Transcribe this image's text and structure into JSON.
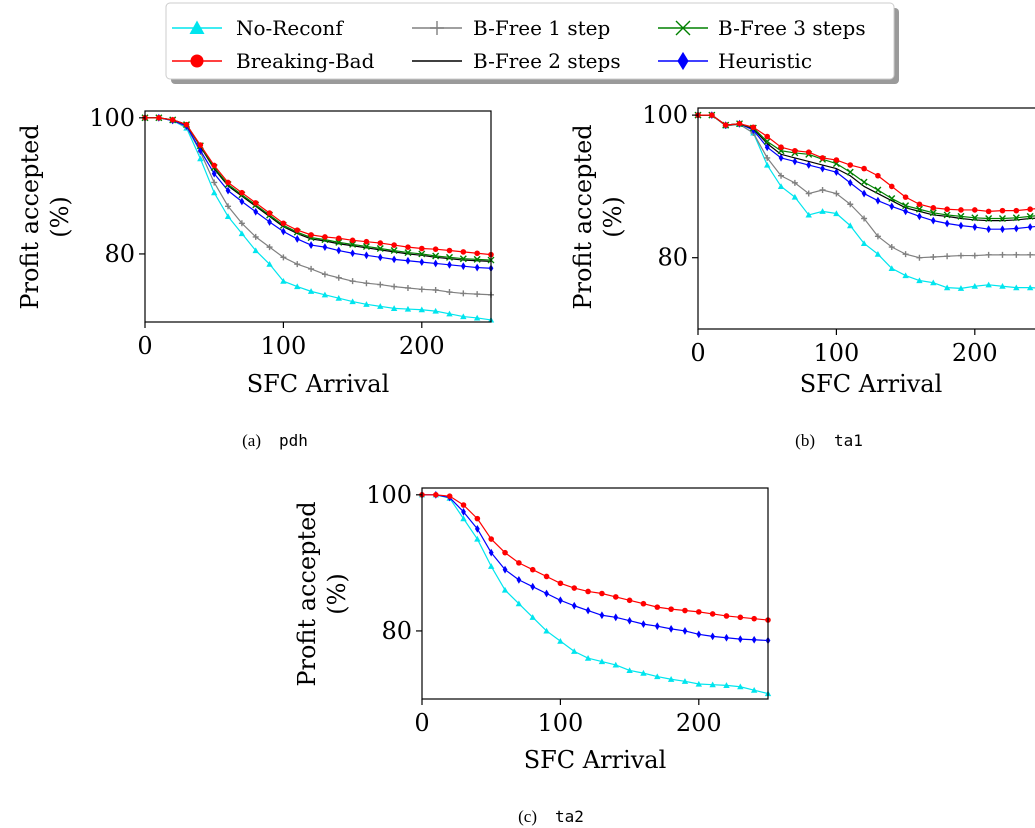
{
  "legend": {
    "entries": [
      {
        "label": "No-Reconf",
        "color": "#00e5ee",
        "marker": "triangle"
      },
      {
        "label": "Breaking-Bad",
        "color": "#ff0000",
        "marker": "circle"
      },
      {
        "label": "B-Free 1 step",
        "color": "#808080",
        "marker": "plus"
      },
      {
        "label": "B-Free 2 steps",
        "color": "#000000",
        "marker": "none"
      },
      {
        "label": "B-Free 3 steps",
        "color": "#008000",
        "marker": "x"
      },
      {
        "label": "Heuristic",
        "color": "#0000ff",
        "marker": "diamond"
      }
    ]
  },
  "chart_data": [
    {
      "type": "line",
      "caption": "(a)",
      "caption_code": "pdh",
      "xlabel": "SFC Arrival",
      "ylabel": "Profit accepted (%)",
      "xlim": [
        0,
        250
      ],
      "ylim": [
        70,
        101
      ],
      "xticks": [
        0,
        100,
        200
      ],
      "yticks": [
        80,
        100
      ],
      "grid": false,
      "x": [
        0,
        10,
        20,
        30,
        40,
        50,
        60,
        70,
        80,
        90,
        100,
        110,
        120,
        130,
        140,
        150,
        160,
        170,
        180,
        190,
        200,
        210,
        220,
        230,
        240,
        250
      ],
      "series": [
        {
          "name": "No-Reconf",
          "values": [
            100,
            100,
            99.6,
            98.5,
            94,
            89,
            85.5,
            83,
            80.5,
            78.5,
            76,
            75.2,
            74.5,
            74,
            73.5,
            73,
            72.6,
            72.3,
            72,
            71.9,
            71.8,
            71.6,
            71.2,
            70.8,
            70.6,
            70.3
          ]
        },
        {
          "name": "Breaking-Bad",
          "values": [
            100,
            100,
            99.7,
            99,
            96,
            93,
            90.5,
            89,
            87.5,
            86,
            84.5,
            83.5,
            82.8,
            82.5,
            82.3,
            82,
            81.8,
            81.6,
            81.3,
            81,
            80.8,
            80.7,
            80.5,
            80.3,
            80.1,
            79.9
          ]
        },
        {
          "name": "B-Free 1 step",
          "values": [
            100,
            100,
            99.6,
            98.7,
            95,
            90.5,
            87,
            84.5,
            82.5,
            81,
            79.5,
            78.5,
            77.8,
            77,
            76.5,
            76,
            75.7,
            75.5,
            75.2,
            75,
            74.8,
            74.7,
            74.4,
            74.2,
            74.1,
            74
          ]
        },
        {
          "name": "B-Free 2 steps",
          "values": [
            100,
            100,
            99.7,
            99,
            95.8,
            92.5,
            90,
            88.5,
            87,
            85.5,
            84,
            83,
            82.2,
            81.9,
            81.5,
            81.2,
            80.9,
            80.6,
            80.3,
            80,
            79.8,
            79.5,
            79.3,
            79.1,
            79,
            78.9
          ]
        },
        {
          "name": "B-Free 3 steps",
          "values": [
            100,
            100,
            99.7,
            99,
            95.9,
            92.7,
            90.2,
            88.7,
            87.2,
            85.7,
            84.2,
            83.2,
            82.4,
            82.1,
            81.7,
            81.4,
            81.1,
            80.8,
            80.5,
            80.2,
            80,
            79.7,
            79.5,
            79.3,
            79.2,
            79.1
          ]
        },
        {
          "name": "Heuristic",
          "values": [
            100,
            100,
            99.6,
            98.8,
            95.2,
            91.8,
            89.3,
            87.7,
            86.2,
            84.7,
            83.3,
            82.2,
            81.3,
            81,
            80.5,
            80.1,
            79.8,
            79.5,
            79.2,
            79,
            78.8,
            78.6,
            78.4,
            78.2,
            78,
            77.9
          ]
        }
      ]
    },
    {
      "type": "line",
      "caption": "(b)",
      "caption_code": "ta1",
      "xlabel": "SFC Arrival",
      "ylabel": "Profit accepted (%)",
      "xlim": [
        0,
        250
      ],
      "ylim": [
        70,
        101
      ],
      "xticks": [
        0,
        100,
        200
      ],
      "yticks": [
        80,
        100
      ],
      "grid": false,
      "x": [
        0,
        10,
        20,
        30,
        40,
        50,
        60,
        70,
        80,
        90,
        100,
        110,
        120,
        130,
        140,
        150,
        160,
        170,
        180,
        190,
        200,
        210,
        220,
        230,
        240,
        250
      ],
      "series": [
        {
          "name": "No-Reconf",
          "values": [
            100,
            100,
            98.5,
            98.7,
            97.5,
            93,
            90,
            88.5,
            86,
            86.5,
            86.2,
            84.5,
            82,
            80.5,
            78.5,
            77.5,
            76.8,
            76.5,
            75.8,
            75.7,
            76,
            76.2,
            76,
            75.8,
            75.8,
            75.7
          ]
        },
        {
          "name": "Breaking-Bad",
          "values": [
            100,
            100,
            98.6,
            98.8,
            98.3,
            97,
            95.5,
            95,
            94.8,
            94,
            93.7,
            93,
            92.5,
            91.5,
            90,
            88.5,
            87.5,
            87,
            86.8,
            86.7,
            86.7,
            86.5,
            86.6,
            86.6,
            86.8,
            87
          ]
        },
        {
          "name": "B-Free 1 step",
          "values": [
            100,
            100,
            98.5,
            98.7,
            97.5,
            94,
            91.5,
            90.5,
            89,
            89.5,
            89,
            87.5,
            85.5,
            83,
            81.5,
            80.5,
            80,
            80.1,
            80.2,
            80.3,
            80.3,
            80.4,
            80.4,
            80.4,
            80.4,
            80.4
          ]
        },
        {
          "name": "B-Free 2 steps",
          "values": [
            100,
            100,
            98.6,
            98.8,
            98.1,
            96,
            94.5,
            94,
            93.5,
            93,
            92.5,
            91.5,
            90,
            89,
            88,
            87,
            86.5,
            86,
            85.8,
            85.5,
            85.3,
            85.2,
            85.2,
            85.3,
            85.5,
            85.6
          ]
        },
        {
          "name": "B-Free 3 steps",
          "values": [
            100,
            100,
            98.6,
            98.8,
            98.2,
            96.3,
            95,
            94.7,
            94.5,
            93.8,
            93.2,
            92,
            90.6,
            89.5,
            88.3,
            87.3,
            86.8,
            86.3,
            86,
            85.8,
            85.6,
            85.5,
            85.5,
            85.6,
            85.8,
            86
          ]
        },
        {
          "name": "Heuristic",
          "values": [
            100,
            100,
            98.6,
            98.8,
            97.9,
            95.5,
            94,
            93.5,
            93,
            92.5,
            92,
            90.5,
            89,
            88,
            87.2,
            86.5,
            85.8,
            85.2,
            84.8,
            84.5,
            84.3,
            84,
            84,
            84.1,
            84.3,
            84.5
          ]
        }
      ]
    },
    {
      "type": "line",
      "caption": "(c)",
      "caption_code": "ta2",
      "xlabel": "SFC Arrival",
      "ylabel": "Profit accepted (%)",
      "xlim": [
        0,
        250
      ],
      "ylim": [
        70,
        101
      ],
      "xticks": [
        0,
        100,
        200
      ],
      "yticks": [
        80,
        100
      ],
      "grid": false,
      "x": [
        0,
        10,
        20,
        30,
        40,
        50,
        60,
        70,
        80,
        90,
        100,
        110,
        120,
        130,
        140,
        150,
        160,
        170,
        180,
        190,
        200,
        210,
        220,
        230,
        240,
        250
      ],
      "series": [
        {
          "name": "No-Reconf",
          "values": [
            100,
            100,
            99.5,
            96.5,
            93.5,
            89.5,
            86,
            84,
            82,
            80,
            78.5,
            77,
            76,
            75.5,
            75,
            74.2,
            73.8,
            73.3,
            72.9,
            72.6,
            72.2,
            72.1,
            72,
            71.8,
            71.3,
            70.8
          ]
        },
        {
          "name": "Breaking-Bad",
          "values": [
            100,
            100,
            99.8,
            98.5,
            96.5,
            93.5,
            91.5,
            90,
            89,
            88,
            87,
            86.3,
            85.8,
            85.5,
            85,
            84.5,
            84,
            83.5,
            83.2,
            83,
            82.8,
            82.5,
            82.2,
            82,
            81.8,
            81.6
          ]
        },
        {
          "name": "Heuristic",
          "values": [
            100,
            100,
            99.6,
            97.5,
            95,
            91.5,
            89,
            87.5,
            86.5,
            85.5,
            84.5,
            83.7,
            83,
            82.3,
            82,
            81.5,
            81,
            80.7,
            80.3,
            80,
            79.5,
            79.2,
            79,
            78.8,
            78.7,
            78.6
          ]
        }
      ]
    }
  ]
}
